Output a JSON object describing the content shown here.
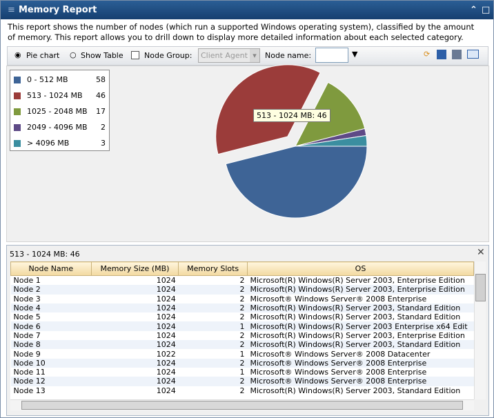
{
  "header": {
    "title": "Memory Report"
  },
  "description": "This report shows the number of nodes (which run a supported Windows operating system), classified by the amount of memory. This report allows you to drill down to display more detailed information about each selected category.",
  "toolbar": {
    "pie_chart": "Pie chart",
    "show_table": "Show Table",
    "node_group_label": "Node Group:",
    "node_group_value": "Client Agent",
    "node_name_label": "Node name:"
  },
  "chart_data": {
    "type": "pie",
    "categories": [
      "0 - 512 MB",
      "513 - 1024 MB",
      "1025 - 2048 MB",
      "2049 - 4096 MB",
      "> 4096 MB"
    ],
    "values": [
      58,
      46,
      17,
      2,
      3
    ],
    "colors": [
      "#3e6496",
      "#9b3c3a",
      "#7f9a3e",
      "#5e4a86",
      "#3b8ea0"
    ],
    "legend": "top-left",
    "tooltip": "513 - 1024 MB: 46"
  },
  "table": {
    "caption": "513 - 1024 MB: 46",
    "columns": [
      "Node Name",
      "Memory Size (MB)",
      "Memory Slots",
      "OS"
    ],
    "rows": [
      [
        "Node 1",
        1024,
        2,
        "Microsoft(R) Windows(R) Server 2003, Enterprise Edition"
      ],
      [
        "Node 2",
        1024,
        2,
        "Microsoft(R) Windows(R) Server 2003, Enterprise Edition"
      ],
      [
        "Node 3",
        1024,
        2,
        "Microsoft® Windows Server® 2008 Enterprise"
      ],
      [
        "Node 4",
        1024,
        2,
        "Microsoft(R) Windows(R) Server 2003, Standard Edition"
      ],
      [
        "Node 5",
        1024,
        2,
        "Microsoft(R) Windows(R) Server 2003, Standard Edition"
      ],
      [
        "Node 6",
        1024,
        1,
        "Microsoft(R) Windows(R) Server 2003 Enterprise x64 Edit"
      ],
      [
        "Node 7",
        1024,
        2,
        "Microsoft(R) Windows(R) Server 2003, Enterprise Edition"
      ],
      [
        "Node 8",
        1024,
        2,
        "Microsoft(R) Windows(R) Server 2003, Standard Edition"
      ],
      [
        "Node 9",
        1022,
        1,
        "Microsoft® Windows Server® 2008 Datacenter"
      ],
      [
        "Node 10",
        1024,
        2,
        "Microsoft® Windows Server® 2008 Enterprise"
      ],
      [
        "Node 11",
        1024,
        1,
        "Microsoft® Windows Server® 2008 Enterprise"
      ],
      [
        "Node 12",
        1024,
        2,
        "Microsoft® Windows Server® 2008 Enterprise"
      ],
      [
        "Node 13",
        1024,
        2,
        "Microsoft(R) Windows(R) Server 2003, Standard Edition"
      ]
    ]
  }
}
